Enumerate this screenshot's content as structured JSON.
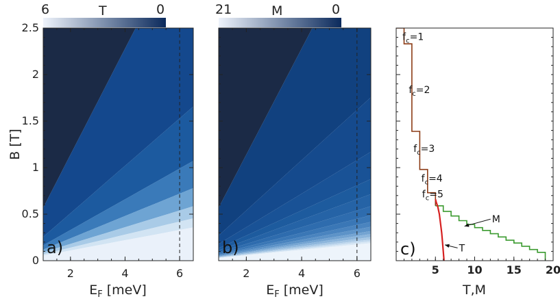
{
  "chart_data": [
    {
      "type": "heatmap",
      "panel": "a)",
      "colorbar": {
        "label": "T",
        "min_label": "6",
        "max_label": "0",
        "dark": "#0b2a5c",
        "light": "#eef3fb"
      },
      "xlabel_main": "E",
      "xlabel_sub": "F",
      "xlabel_rest": " [meV]",
      "ylabel": "B [T]",
      "xlim": [
        1.0,
        6.5
      ],
      "ylim": [
        0,
        2.5
      ],
      "xticks": [
        "2",
        "4",
        "6"
      ],
      "yticks": [
        "0",
        "0.5",
        "1",
        "1.5",
        "2",
        "2.5"
      ],
      "dashed_line_x": 6,
      "plateau_slopes": [
        0.57,
        0.255,
        0.165,
        0.12,
        0.09,
        0.07,
        0.055
      ],
      "plateau_colors": [
        "#1b2a46",
        "#14488d",
        "#1c5a9f",
        "#3a7ab9",
        "#6ea4d3",
        "#a9cbe7",
        "#d2e4f3",
        "#eaf1fa"
      ]
    },
    {
      "type": "heatmap",
      "panel": "b)",
      "colorbar": {
        "label": "M",
        "min_label": "21",
        "max_label": "0",
        "dark": "#0b2a5c",
        "light": "#eef3fb"
      },
      "xlabel_main": "E",
      "xlabel_sub": "F",
      "xlabel_rest": " [meV]",
      "xlim": [
        1.0,
        6.5
      ],
      "ylim": [
        0,
        2.5
      ],
      "xticks": [
        "2",
        "4",
        "6"
      ],
      "dashed_line_x": 6,
      "plateau_slopes": [
        0.57,
        0.27,
        0.18,
        0.135,
        0.11,
        0.09,
        0.075,
        0.064,
        0.056,
        0.049,
        0.044,
        0.039,
        0.035,
        0.032,
        0.029
      ],
      "plateau_colors": [
        "#1b2a46",
        "#11417f",
        "#154a8d",
        "#195296",
        "#1d5b9e",
        "#2563a6",
        "#2e6cae",
        "#3a77b6",
        "#4a84bf",
        "#5d93c8",
        "#74a4d2",
        "#8db6dc",
        "#a8c8e5",
        "#c2d9ee",
        "#d9e8f5",
        "#edf4fb"
      ]
    },
    {
      "type": "line",
      "panel": "c)",
      "xlabel": "T,M",
      "xlim": [
        0,
        20
      ],
      "ylim": [
        0,
        2.5
      ],
      "xticks": [
        "5",
        "10",
        "15",
        "20"
      ],
      "series": [
        {
          "name": "T",
          "color": "#d62020",
          "x": [
            6.1,
            6.0,
            5.9,
            5.8,
            5.65,
            5.5,
            5.3,
            5.1,
            5.0
          ],
          "y": [
            0.0,
            0.1,
            0.2,
            0.3,
            0.4,
            0.5,
            0.58,
            0.63,
            0.66
          ]
        },
        {
          "name": "M",
          "color": "#3a9a2e",
          "x": [
            19,
            19,
            18,
            18,
            17,
            17,
            16,
            16,
            15,
            15,
            14,
            14,
            13,
            13,
            12,
            12,
            11,
            11,
            10,
            10,
            9,
            9,
            8,
            8,
            7,
            7,
            6,
            6,
            5
          ],
          "y": [
            0.0,
            0.09,
            0.09,
            0.12,
            0.12,
            0.155,
            0.155,
            0.19,
            0.19,
            0.22,
            0.22,
            0.255,
            0.255,
            0.29,
            0.29,
            0.325,
            0.325,
            0.355,
            0.355,
            0.39,
            0.39,
            0.43,
            0.43,
            0.48,
            0.48,
            0.53,
            0.53,
            0.59,
            0.59
          ]
        },
        {
          "name": "stairs",
          "color": "#8b3a14",
          "x": [
            5,
            5,
            4,
            4,
            3,
            3,
            2,
            2,
            1,
            1,
            0
          ],
          "y": [
            0.59,
            0.73,
            0.73,
            0.98,
            0.98,
            1.39,
            1.39,
            2.33,
            2.33,
            2.5,
            2.5
          ]
        }
      ],
      "annotations": [
        {
          "base": "f",
          "sub": "c",
          "rest": "=1",
          "x": 0.8,
          "y": 2.37
        },
        {
          "base": "f",
          "sub": "c",
          "rest": "=2",
          "x": 1.6,
          "y": 1.8
        },
        {
          "base": "f",
          "sub": "c",
          "rest": "=3",
          "x": 2.2,
          "y": 1.17
        },
        {
          "base": "f",
          "sub": "c",
          "rest": "=4",
          "x": 3.2,
          "y": 0.85
        },
        {
          "base": "f",
          "sub": "c",
          "rest": "=5",
          "x": 3.3,
          "y": 0.68
        }
      ],
      "arrow_labels": [
        {
          "text": "M",
          "tx": 12.2,
          "ty": 0.41,
          "ax": 8.7,
          "ay": 0.37
        },
        {
          "text": "T",
          "tx": 8.0,
          "ty": 0.1,
          "ax": 6.2,
          "ay": 0.17
        }
      ]
    }
  ]
}
